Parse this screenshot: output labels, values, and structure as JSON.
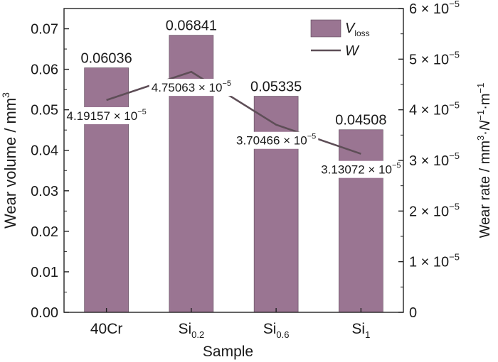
{
  "chart_data": {
    "type": "bar",
    "categories": [
      {
        "base": "40Cr",
        "sub": ""
      },
      {
        "base": "Si",
        "sub": "0.2"
      },
      {
        "base": "Si",
        "sub": "0.6"
      },
      {
        "base": "Si",
        "sub": "1"
      }
    ],
    "xlabel": "Sample",
    "ylabel_left": "Wear volume / mm",
    "ylabel_left_sup": "3",
    "ylabel_right": [
      {
        "t": "Wear rate / mm",
        "s": ""
      },
      {
        "t": "3",
        "s": "sup"
      },
      {
        "t": "·",
        "s": ""
      },
      {
        "t": "N",
        "s": "it"
      },
      {
        "t": "−1",
        "s": "sup"
      },
      {
        "t": "·m",
        "s": ""
      },
      {
        "t": "−1",
        "s": "sup"
      }
    ],
    "ylim_left": [
      0,
      0.075
    ],
    "left_ticks": [
      "0.00",
      "0.01",
      "0.02",
      "0.03",
      "0.04",
      "0.05",
      "0.06",
      "0.07"
    ],
    "ylim_right": [
      0,
      6e-05
    ],
    "right_ticks": [
      {
        "value": 0,
        "mant": "0",
        "exp": ""
      },
      {
        "value": 1e-05,
        "mant": "1 × 10",
        "exp": "−5"
      },
      {
        "value": 2e-05,
        "mant": "2 × 10",
        "exp": "−5"
      },
      {
        "value": 3e-05,
        "mant": "3 × 10",
        "exp": "−5"
      },
      {
        "value": 4e-05,
        "mant": "4 × 10",
        "exp": "−5"
      },
      {
        "value": 5e-05,
        "mant": "5 × 10",
        "exp": "−5"
      },
      {
        "value": 6e-05,
        "mant": "6 × 10",
        "exp": "−5"
      }
    ],
    "series": [
      {
        "name": "V",
        "name_sub": "loss",
        "kind": "bar",
        "axis": "left",
        "color": "#9a7592",
        "values": [
          0.06036,
          0.06841,
          0.05335,
          0.04508
        ],
        "labels": [
          "0.06036",
          "0.06841",
          "0.05335",
          "0.04508"
        ]
      },
      {
        "name": "W",
        "kind": "line",
        "axis": "right",
        "color": "#5e4e57",
        "values": [
          4.19157e-05,
          4.75063e-05,
          3.70466e-05,
          3.13072e-05
        ],
        "labels": [
          {
            "mant": "4.19157 × 10",
            "exp": "−5"
          },
          {
            "mant": "4.75063 × 10",
            "exp": "−5"
          },
          {
            "mant": "3.70466 × 10",
            "exp": "−5"
          },
          {
            "mant": "3.13072 × 10",
            "exp": "−5"
          }
        ]
      }
    ],
    "legend_position": "top-right",
    "grid": false
  }
}
